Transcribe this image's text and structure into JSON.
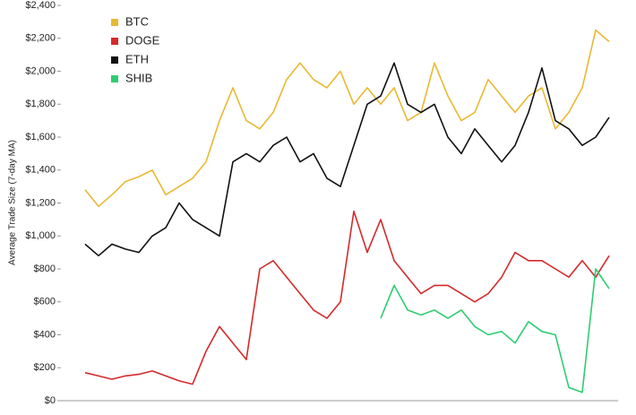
{
  "chart_data": {
    "type": "line",
    "y_label": "Average Trade Size (7-day MA)",
    "ylim": [
      0,
      2400
    ],
    "yticks": [
      {
        "value": 0,
        "label": "$0"
      },
      {
        "value": 200,
        "label": "$200"
      },
      {
        "value": 400,
        "label": "$400"
      },
      {
        "value": 600,
        "label": "$600"
      },
      {
        "value": 800,
        "label": "$800"
      },
      {
        "value": 1000,
        "label": "$1,000"
      },
      {
        "value": 1200,
        "label": "$1,200"
      },
      {
        "value": 1400,
        "label": "$1,400"
      },
      {
        "value": 1600,
        "label": "$1,600"
      },
      {
        "value": 1800,
        "label": "$1,800"
      },
      {
        "value": 2000,
        "label": "$2,000"
      },
      {
        "value": 2200,
        "label": "$2,200"
      },
      {
        "value": 2400,
        "label": "$2,400"
      }
    ],
    "grid": false,
    "legend": "top-left",
    "series": [
      {
        "name": "BTC",
        "color": "#e8b931",
        "values": [
          1280,
          1180,
          1250,
          1330,
          1360,
          1400,
          1250,
          1300,
          1350,
          1450,
          1700,
          1900,
          1700,
          1650,
          1750,
          1950,
          2050,
          1950,
          1900,
          2000,
          1800,
          1900,
          1800,
          1900,
          1700,
          1750,
          2050,
          1850,
          1700,
          1750,
          1950,
          1850,
          1750,
          1850,
          1900,
          1650,
          1750,
          1900,
          2250,
          2180
        ]
      },
      {
        "name": "DOGE",
        "color": "#d42a2a",
        "values": [
          170,
          150,
          130,
          150,
          160,
          180,
          150,
          120,
          100,
          300,
          450,
          350,
          250,
          800,
          850,
          750,
          650,
          550,
          500,
          600,
          1150,
          900,
          1100,
          850,
          750,
          650,
          700,
          700,
          650,
          600,
          650,
          750,
          900,
          850,
          850,
          800,
          750,
          850,
          750,
          880
        ]
      },
      {
        "name": "ETH",
        "color": "#111111",
        "values": [
          950,
          880,
          950,
          920,
          900,
          1000,
          1050,
          1200,
          1100,
          1050,
          1000,
          1450,
          1500,
          1450,
          1550,
          1600,
          1450,
          1500,
          1350,
          1300,
          1550,
          1800,
          1850,
          2050,
          1800,
          1750,
          1800,
          1600,
          1500,
          1650,
          1550,
          1450,
          1550,
          1750,
          2020,
          1700,
          1650,
          1550,
          1600,
          1720
        ]
      },
      {
        "name": "SHIB",
        "color": "#2ecc71",
        "values": [
          null,
          null,
          null,
          null,
          null,
          null,
          null,
          null,
          null,
          null,
          null,
          null,
          null,
          null,
          null,
          null,
          null,
          null,
          null,
          null,
          null,
          null,
          500,
          700,
          550,
          520,
          550,
          500,
          550,
          450,
          400,
          420,
          350,
          480,
          420,
          400,
          80,
          50,
          800,
          680
        ]
      }
    ]
  }
}
